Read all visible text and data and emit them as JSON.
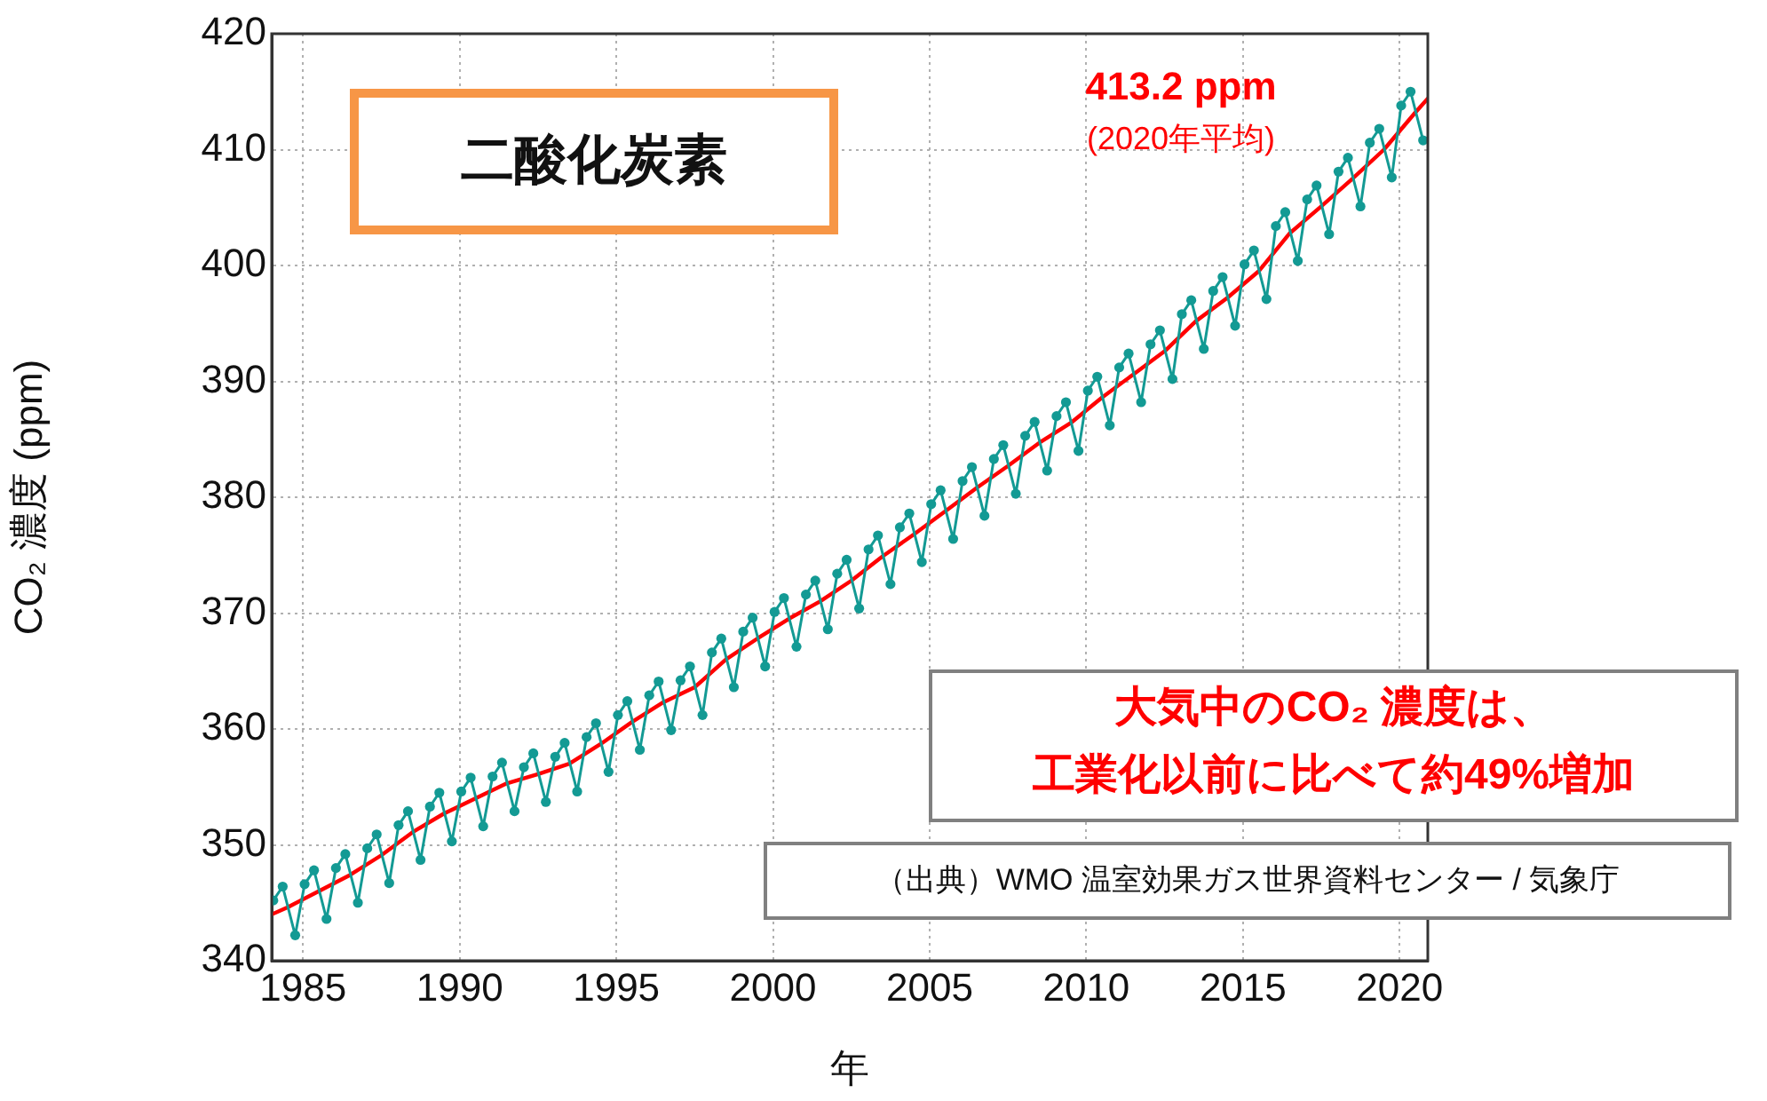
{
  "chart_data": {
    "type": "line",
    "title": "二酸化炭素",
    "xlabel": "年",
    "ylabel": "CO₂ 濃度 (ppm)",
    "xlim": [
      1984,
      2020.9
    ],
    "xticks": [
      1985,
      1990,
      1995,
      2000,
      2005,
      2010,
      2015,
      2020
    ],
    "ylim": [
      340,
      420
    ],
    "yticks": [
      340,
      350,
      360,
      370,
      380,
      390,
      400,
      410,
      420
    ],
    "grid": true,
    "legend": false,
    "annotations": [
      "413.2 ppm",
      "(2020年平均)",
      "大気中のCO₂ 濃度は、",
      "工業化以前に比べて約49%増加",
      "（出典）WMO 温室効果ガス世界資料センター / 気象庁"
    ],
    "series": [
      {
        "color": "#139a94",
        "marker": "circle",
        "line_style": "solid",
        "x": [
          1984.05,
          1984.35,
          1984.75,
          1985.05,
          1985.35,
          1985.75,
          1986.05,
          1986.35,
          1986.75,
          1987.05,
          1987.35,
          1987.75,
          1988.05,
          1988.35,
          1988.75,
          1989.05,
          1989.35,
          1989.75,
          1990.05,
          1990.35,
          1990.75,
          1991.05,
          1991.35,
          1991.75,
          1992.05,
          1992.35,
          1992.75,
          1993.05,
          1993.35,
          1993.75,
          1994.05,
          1994.35,
          1994.75,
          1995.05,
          1995.35,
          1995.75,
          1996.05,
          1996.35,
          1996.75,
          1997.05,
          1997.35,
          1997.75,
          1998.05,
          1998.35,
          1998.75,
          1999.05,
          1999.35,
          1999.75,
          2000.05,
          2000.35,
          2000.75,
          2001.05,
          2001.35,
          2001.75,
          2002.05,
          2002.35,
          2002.75,
          2003.05,
          2003.35,
          2003.75,
          2004.05,
          2004.35,
          2004.75,
          2005.05,
          2005.35,
          2005.75,
          2006.05,
          2006.35,
          2006.75,
          2007.05,
          2007.35,
          2007.75,
          2008.05,
          2008.35,
          2008.75,
          2009.05,
          2009.35,
          2009.75,
          2010.05,
          2010.35,
          2010.75,
          2011.05,
          2011.35,
          2011.75,
          2012.05,
          2012.35,
          2012.75,
          2013.05,
          2013.35,
          2013.75,
          2014.05,
          2014.35,
          2014.75,
          2015.05,
          2015.35,
          2015.75,
          2016.05,
          2016.35,
          2016.75,
          2017.05,
          2017.35,
          2017.75,
          2018.05,
          2018.35,
          2018.75,
          2019.05,
          2019.35,
          2019.75,
          2020.05,
          2020.35,
          2020.75
        ],
        "values": [
          345.2,
          346.4,
          342.2,
          346.6,
          347.8,
          343.6,
          348.0,
          349.2,
          345.0,
          349.7,
          350.9,
          346.7,
          351.7,
          352.9,
          348.7,
          353.3,
          354.5,
          350.3,
          354.6,
          355.8,
          351.6,
          355.9,
          357.1,
          352.9,
          356.7,
          357.9,
          353.7,
          357.6,
          358.8,
          354.6,
          359.3,
          360.5,
          356.3,
          361.2,
          362.4,
          358.2,
          362.9,
          364.1,
          359.9,
          364.2,
          365.4,
          361.2,
          366.6,
          367.8,
          363.6,
          368.4,
          369.6,
          365.4,
          370.1,
          371.3,
          367.1,
          371.6,
          372.8,
          368.6,
          373.4,
          374.6,
          370.4,
          375.5,
          376.7,
          372.5,
          377.4,
          378.6,
          374.4,
          379.4,
          380.6,
          376.4,
          381.4,
          382.6,
          378.4,
          383.3,
          384.5,
          380.3,
          385.3,
          386.5,
          382.3,
          387.0,
          388.2,
          384.0,
          389.2,
          390.4,
          386.2,
          391.2,
          392.4,
          388.2,
          393.2,
          394.4,
          390.2,
          395.8,
          397.0,
          392.8,
          397.8,
          399.0,
          394.8,
          400.1,
          401.3,
          397.1,
          403.4,
          404.6,
          400.4,
          405.7,
          406.9,
          402.7,
          408.1,
          409.3,
          405.1,
          410.6,
          411.8,
          407.6,
          413.8,
          415.0,
          410.8
        ]
      },
      {
        "color": "#ff0000",
        "marker": "none",
        "line_style": "solid",
        "x": [
          1984.0,
          1984.5,
          1985.5,
          1986.5,
          1987.5,
          1988.5,
          1989.5,
          1990.5,
          1991.5,
          1992.5,
          1993.5,
          1994.5,
          1995.5,
          1996.5,
          1997.5,
          1998.5,
          1999.5,
          2000.5,
          2001.5,
          2002.5,
          2003.5,
          2004.5,
          2005.5,
          2006.5,
          2007.5,
          2008.5,
          2009.5,
          2010.5,
          2011.5,
          2012.5,
          2013.5,
          2014.5,
          2015.5,
          2016.5,
          2017.5,
          2018.5,
          2019.5,
          2020.5,
          2020.9
        ],
        "values": [
          344.0,
          344.6,
          346.0,
          347.4,
          349.1,
          351.1,
          352.7,
          354.0,
          355.3,
          356.1,
          357.0,
          358.7,
          360.6,
          362.3,
          363.6,
          366.0,
          367.8,
          369.5,
          371.0,
          372.8,
          374.9,
          376.8,
          378.8,
          380.8,
          382.7,
          384.7,
          386.4,
          388.6,
          390.6,
          392.6,
          395.2,
          397.2,
          399.5,
          402.8,
          405.1,
          407.5,
          410.0,
          413.2,
          414.4
        ]
      }
    ]
  }
}
